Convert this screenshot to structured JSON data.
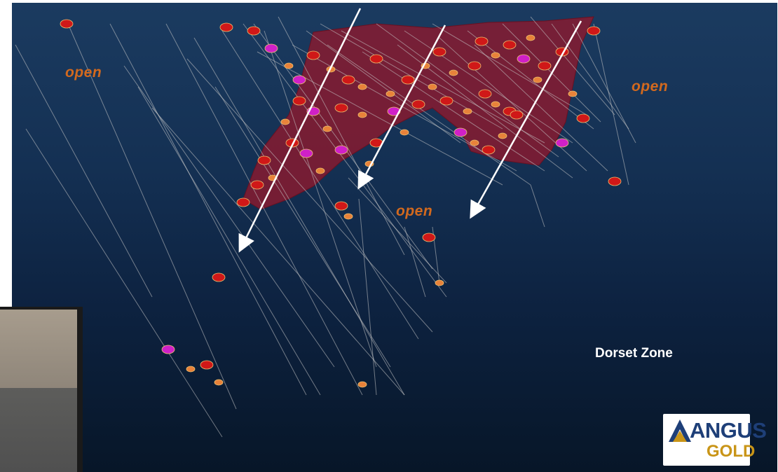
{
  "annotations": {
    "open_labels": [
      "open",
      "open",
      "open"
    ],
    "zone_label": "Dorset Zone"
  },
  "logo": {
    "line1": "ANGUS",
    "line2": "GOLD",
    "colors": {
      "navy": "#1e3f78",
      "gold": "#c99518"
    }
  },
  "colors": {
    "background_top": "#1b3b60",
    "background_bottom": "#071628",
    "ore_body": "#8b1a2e",
    "open_label": "#d2691e",
    "intercept_red": "#d01818",
    "intercept_orange": "#e8823a",
    "intercept_magenta": "#d020c8",
    "drill_trace": "#c8c8c8"
  },
  "inset_photo": {
    "description": "webcam-style inset, partial"
  }
}
